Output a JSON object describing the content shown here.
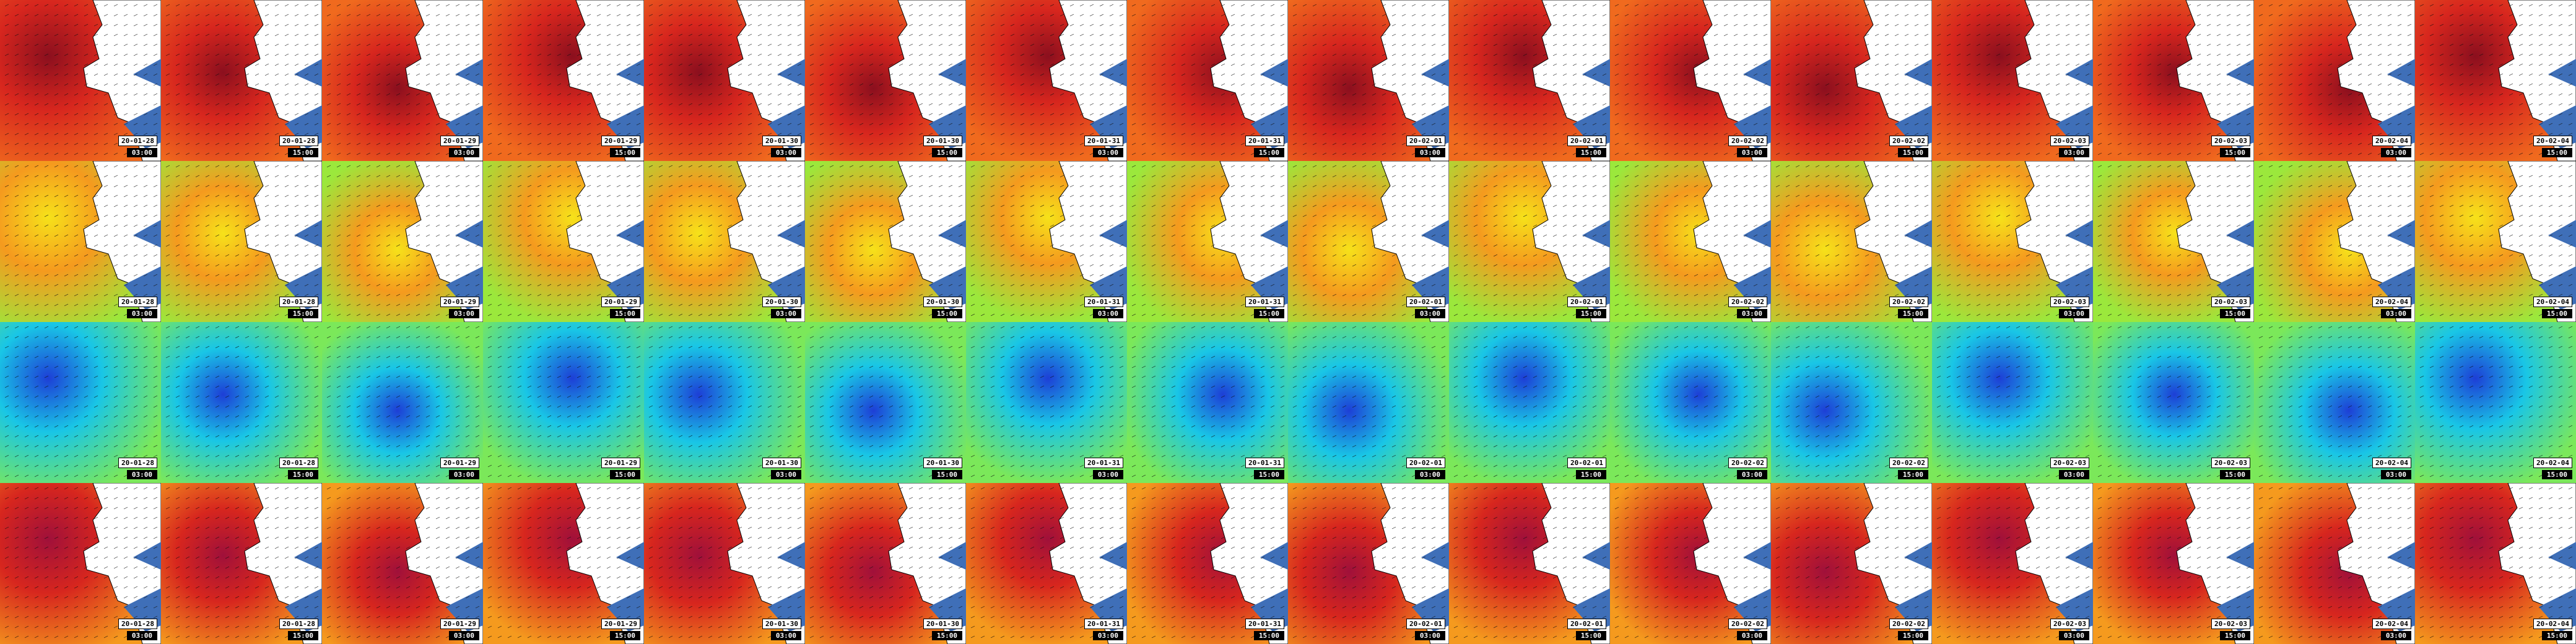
{
  "columns": [
    {
      "date": "20-01-28",
      "time": "03:00"
    },
    {
      "date": "20-01-28",
      "time": "15:00"
    },
    {
      "date": "20-01-29",
      "time": "03:00"
    },
    {
      "date": "20-01-29",
      "time": "15:00"
    },
    {
      "date": "20-01-30",
      "time": "03:00"
    },
    {
      "date": "20-01-30",
      "time": "15:00"
    },
    {
      "date": "20-01-31",
      "time": "03:00"
    },
    {
      "date": "20-01-31",
      "time": "15:00"
    },
    {
      "date": "20-02-01",
      "time": "03:00"
    },
    {
      "date": "20-02-01",
      "time": "15:00"
    },
    {
      "date": "20-02-02",
      "time": "03:00"
    },
    {
      "date": "20-02-02",
      "time": "15:00"
    },
    {
      "date": "20-02-03",
      "time": "03:00"
    },
    {
      "date": "20-02-03",
      "time": "15:00"
    },
    {
      "date": "20-02-04",
      "time": "03:00"
    },
    {
      "date": "20-02-04",
      "time": "15:00"
    }
  ]
}
